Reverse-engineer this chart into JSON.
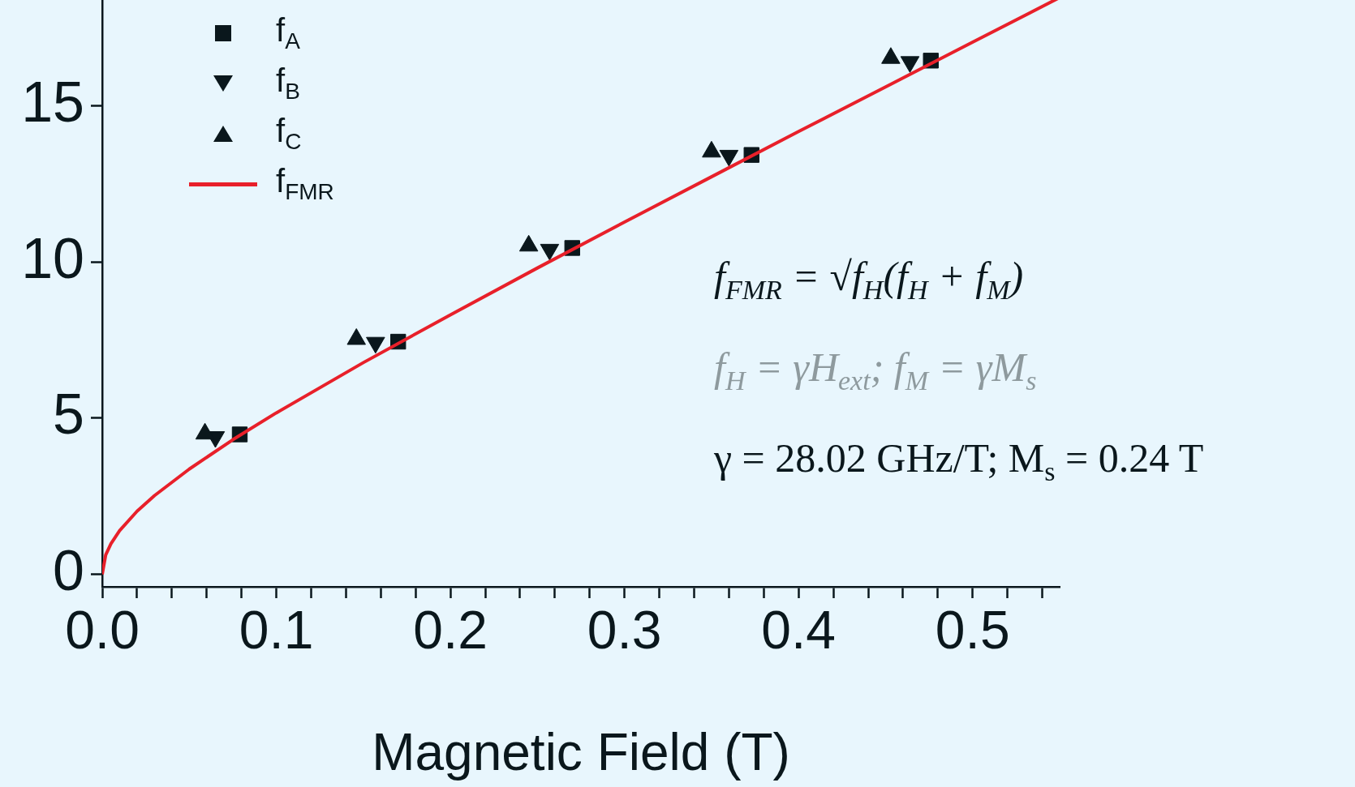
{
  "chart_data": {
    "type": "scatter",
    "xlabel": "Magnetic Field (T)",
    "xlim": [
      0,
      0.55
    ],
    "ylim": [
      -0.4,
      19.3
    ],
    "xticks": [
      {
        "value": 0,
        "label": "0.0"
      },
      {
        "value": 0.02,
        "label": null
      },
      {
        "value": 0.04,
        "label": null
      },
      {
        "value": 0.06,
        "label": null
      },
      {
        "value": 0.08,
        "label": null
      },
      {
        "value": 0.1,
        "label": "0.1"
      },
      {
        "value": 0.12,
        "label": null
      },
      {
        "value": 0.14,
        "label": null
      },
      {
        "value": 0.16,
        "label": null
      },
      {
        "value": 0.18,
        "label": null
      },
      {
        "value": 0.2,
        "label": "0.2"
      },
      {
        "value": 0.22,
        "label": null
      },
      {
        "value": 0.24,
        "label": null
      },
      {
        "value": 0.26,
        "label": null
      },
      {
        "value": 0.28,
        "label": null
      },
      {
        "value": 0.3,
        "label": "0.3"
      },
      {
        "value": 0.32,
        "label": null
      },
      {
        "value": 0.34,
        "label": null
      },
      {
        "value": 0.36,
        "label": null
      },
      {
        "value": 0.38,
        "label": null
      },
      {
        "value": 0.4,
        "label": "0.4"
      },
      {
        "value": 0.42,
        "label": null
      },
      {
        "value": 0.44,
        "label": null
      },
      {
        "value": 0.46,
        "label": null
      },
      {
        "value": 0.48,
        "label": null
      },
      {
        "value": 0.5,
        "label": "0.5"
      },
      {
        "value": 0.52,
        "label": null
      },
      {
        "value": 0.54,
        "label": null
      }
    ],
    "yticks": [
      0,
      5,
      10,
      15
    ],
    "legend": "top left",
    "grid": false,
    "series": [
      {
        "name": "f$_{A}$",
        "marker": "square",
        "color": "#0a171c",
        "x": [
          0.079,
          0.17,
          0.27,
          0.373,
          0.476
        ],
        "values": [
          4.48,
          7.45,
          10.45,
          13.43,
          16.45
        ]
      },
      {
        "name": "f$_{B}$",
        "marker": "triangle-down",
        "color": "#0a171c",
        "x": [
          0.065,
          0.157,
          0.257,
          0.36,
          0.464
        ],
        "values": [
          4.4,
          7.42,
          10.4,
          13.41,
          16.41
        ]
      },
      {
        "name": "f$_{C}$",
        "marker": "triangle",
        "color": "#0a171c",
        "x": [
          0.059,
          0.146,
          0.245,
          0.35,
          0.453
        ],
        "values": [
          4.5,
          7.53,
          10.52,
          13.53,
          16.53
        ]
      },
      {
        "name": "f$_{FMR}$",
        "type": "line",
        "marker": "none",
        "line_style": "solid",
        "color": "#e8202a",
        "x": [
          0,
          0.002,
          0.005,
          0.01,
          0.02,
          0.03,
          0.05,
          0.075,
          0.1,
          0.15,
          0.2,
          0.25,
          0.3,
          0.35,
          0.4,
          0.45,
          0.5,
          0.55
        ],
        "values": [
          0,
          0.62,
          0.98,
          1.4,
          2.02,
          2.52,
          3.37,
          4.31,
          5.17,
          6.78,
          8.31,
          9.81,
          11.28,
          12.73,
          14.18,
          15.61,
          17.04,
          18.47
        ]
      }
    ],
    "annotations": [
      "f$_{FMR}$ = √f$_{H}$(f$_{H}$ + f$_{M}$)",
      "f$_{H}$ = γH$_{ext}$; f$_{M}$ = γM$_{s}$",
      "γ = 28.02 GHz/T; M$_{s}$ = 0.24 T"
    ]
  }
}
